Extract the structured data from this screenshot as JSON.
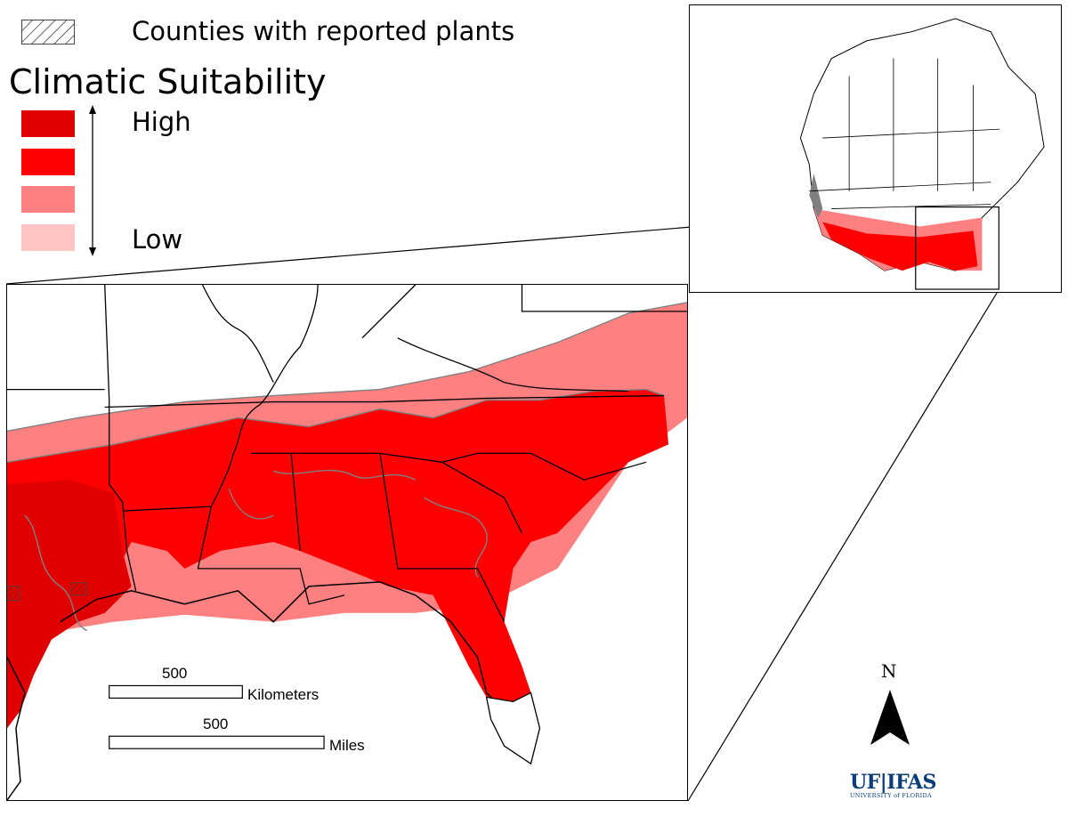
{
  "legend": {
    "hatch_label": "Counties with reported plants",
    "title": "Climatic Suitability",
    "high_label": "High",
    "low_label": "Low",
    "classes": [
      {
        "level": "very-high",
        "color": "#e00000"
      },
      {
        "level": "high",
        "color": "#ff0000"
      },
      {
        "level": "medium",
        "color": "#ff8080"
      },
      {
        "level": "low",
        "color": "#ffc4c4"
      }
    ]
  },
  "scale_bars": {
    "km": {
      "value": "500",
      "unit": "Kilometers"
    },
    "mi": {
      "value": "500",
      "unit": "Miles"
    }
  },
  "north_arrow": {
    "letter": "N",
    "icon": "north-arrow-icon"
  },
  "logo": {
    "main": "UF|IFAS",
    "sub": "UNIVERSITY of FLORIDA",
    "color": "#0a3d7a"
  },
  "colors": {
    "boundary": "#000000",
    "contour": "#808080",
    "background": "#ffffff"
  }
}
